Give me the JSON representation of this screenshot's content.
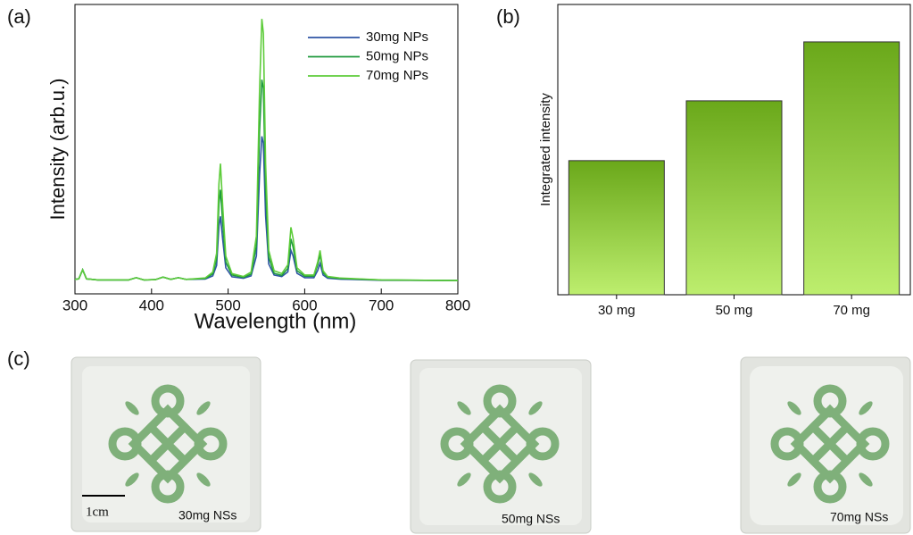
{
  "chart_data": [
    {
      "type": "line",
      "panel_label": "(a)",
      "x_label": "Wavelength (nm)",
      "y_label": "Intensity (arb.u.)",
      "x": [
        300,
        305,
        310,
        315,
        330,
        370,
        380,
        390,
        405,
        415,
        425,
        435,
        445,
        470,
        480,
        485,
        488,
        490,
        493,
        497,
        505,
        520,
        530,
        537,
        541,
        544,
        546,
        549,
        553,
        560,
        570,
        578,
        582,
        585,
        590,
        600,
        612,
        617,
        620,
        624,
        630,
        645,
        660,
        700,
        800
      ],
      "series": [
        {
          "name": "30mg NPs",
          "color": "#2f55a4",
          "values": [
            5,
            5.2,
            8.3,
            5.2,
            4.8,
            4.8,
            5.6,
            4.8,
            4.9,
            5.8,
            5,
            5.6,
            5,
            5.1,
            6.2,
            9.8,
            23.4,
            26.8,
            18.6,
            9,
            5.9,
            5.4,
            6.2,
            13.1,
            41,
            54.4,
            52,
            27,
            10.3,
            6.5,
            6,
            7.6,
            15,
            13,
            7.1,
            5.6,
            5.6,
            8.1,
            10.5,
            6.5,
            5.4,
            5.1,
            5,
            4.7,
            4.6
          ]
        },
        {
          "name": "50mg NPs",
          "color": "#1f9a3e",
          "values": [
            5,
            5.2,
            8.3,
            5.2,
            4.8,
            4.8,
            5.6,
            4.8,
            4.9,
            5.8,
            5,
            5.6,
            5,
            5.3,
            6.9,
            12,
            31,
            36,
            24.4,
            11,
            6.5,
            5.7,
            6.8,
            16.6,
            56,
            74,
            71,
            36,
            12.7,
            7.1,
            6.4,
            8.8,
            19,
            16,
            8,
            6.1,
            6.1,
            10,
            13.6,
            7.3,
            5.8,
            5.3,
            5.2,
            4.8,
            4.6
          ]
        },
        {
          "name": "70mg NPs",
          "color": "#5dcc3a",
          "values": [
            5,
            5.2,
            8.3,
            5.2,
            4.8,
            4.8,
            5.6,
            4.8,
            4.9,
            5.8,
            5,
            5.6,
            5,
            5.5,
            7.5,
            14,
            38,
            45,
            30,
            13,
            7,
            6,
            7.5,
            20,
            70,
            95,
            90,
            45,
            15,
            8,
            7,
            10,
            23,
            19,
            9,
            6.5,
            6.5,
            11,
            15,
            8,
            6,
            5.5,
            5.3,
            4.8,
            4.6
          ]
        }
      ],
      "xlim": [
        300,
        800
      ],
      "xticks": [
        300,
        400,
        500,
        600,
        700,
        800
      ],
      "ylim": [
        0,
        100
      ],
      "legend": "upper right"
    },
    {
      "type": "bar",
      "panel_label": "(b)",
      "y_label": "Integrated intensity",
      "categories": [
        "30 mg",
        "50 mg",
        "70 mg"
      ],
      "values": [
        46.2,
        66.8,
        87.1
      ],
      "color": [
        "#6aa81a",
        "#bdee6e"
      ],
      "ylim": [
        0,
        100
      ]
    }
  ],
  "photos": {
    "panel_label": "(c)",
    "scale_bar": "1cm",
    "captions": [
      "30mg NSs",
      "50mg NSs",
      "70mg NSs"
    ]
  }
}
